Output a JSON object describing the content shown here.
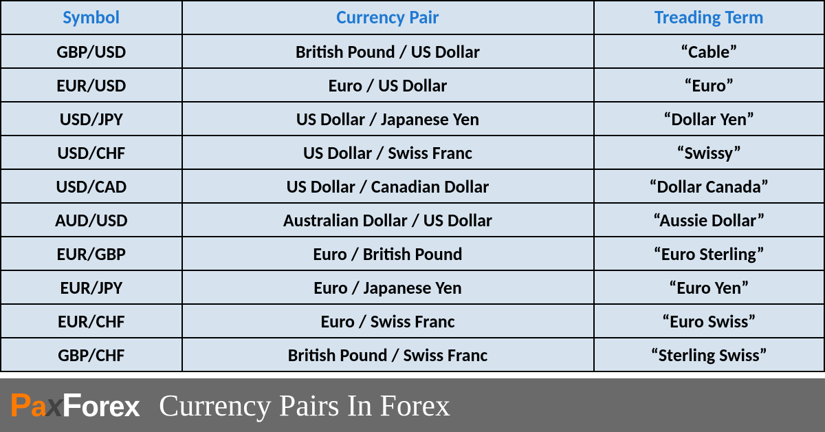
{
  "table": {
    "background_color": "#d6e3ef",
    "border_color": "#000000",
    "header_text_color": "#1f78d1",
    "cell_text_color": "#000000",
    "columns": [
      "Symbol",
      "Currency Pair",
      "Treading Term"
    ],
    "column_widths_pct": [
      22,
      50,
      28
    ],
    "header_fontsize": 27,
    "cell_fontsize": 26,
    "rows": [
      [
        "GBP/USD",
        "British Pound / US Dollar",
        "“Cable”"
      ],
      [
        "EUR/USD",
        "Euro / US Dollar",
        "“Euro”"
      ],
      [
        "USD/JPY",
        "US Dollar / Japanese Yen",
        "“Dollar Yen”"
      ],
      [
        "USD/CHF",
        "US Dollar / Swiss Franc",
        "“Swissy”"
      ],
      [
        "USD/CAD",
        "US Dollar / Canadian Dollar",
        "“Dollar Canada”"
      ],
      [
        "AUD/USD",
        "Australian Dollar / US Dollar",
        "“Aussie Dollar”"
      ],
      [
        "EUR/GBP",
        "Euro / British Pound",
        "“Euro Sterling”"
      ],
      [
        "EUR/JPY",
        "Euro / Japanese Yen",
        "“Euro Yen”"
      ],
      [
        "EUR/CHF",
        "Euro / Swiss Franc",
        "“Euro Swiss”"
      ],
      [
        "GBP/CHF",
        "British Pound / Swiss Franc",
        "“Sterling Swiss”"
      ]
    ]
  },
  "footer": {
    "background_color": "#6a6a6a",
    "logo": {
      "p": "P",
      "a": "a",
      "x": "x",
      "f": "F",
      "orex": "orex",
      "orange": "#ff7a00",
      "dark": "#424242",
      "white": "#ffffff"
    },
    "title": "Currency Pairs In Forex",
    "title_color": "#ffffff",
    "title_fontsize": 44
  }
}
